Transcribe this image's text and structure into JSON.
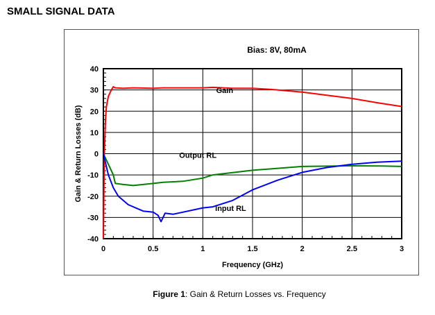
{
  "section_title": "SMALL SIGNAL DATA",
  "caption": {
    "label": "Figure 1",
    "text": ": Gain & Return Losses vs. Frequency"
  },
  "chart_data": {
    "type": "line",
    "title": "Bias: 8V, 80mA",
    "xlabel": "Frequency (GHz)",
    "ylabel": "Gain & Return Losses (dB)",
    "xlim": [
      0,
      3
    ],
    "ylim": [
      -40,
      40
    ],
    "xticks": [
      0,
      0.5,
      1,
      1.5,
      2,
      2.5,
      3
    ],
    "xtick_labels": [
      "0",
      "0.5",
      "1",
      "1.5",
      "2",
      "2.5",
      "3"
    ],
    "yticks": [
      -40,
      -30,
      -20,
      -10,
      0,
      10,
      20,
      30,
      40
    ],
    "ytick_labels": [
      "-40",
      "-30",
      "-20",
      "-10",
      "0",
      "10",
      "20",
      "30",
      "40"
    ],
    "grid": true,
    "series": [
      {
        "name": "Gain",
        "color": "#ff0000",
        "x": [
          0,
          0.005,
          0.01,
          0.02,
          0.03,
          0.05,
          0.08,
          0.1,
          0.12,
          0.2,
          0.3,
          0.5,
          0.6,
          1.0,
          1.1,
          1.3,
          1.5,
          1.7,
          2.0,
          2.3,
          2.5,
          2.75,
          3.0
        ],
        "y": [
          -40,
          -20,
          0,
          15,
          22,
          27,
          30,
          31.5,
          31,
          30.8,
          31,
          30.8,
          31,
          31,
          31.2,
          30.8,
          30.8,
          30.2,
          29,
          27.2,
          26,
          24,
          22.2
        ]
      },
      {
        "name": "Output RL",
        "color": "#008000",
        "x": [
          0,
          0.05,
          0.1,
          0.12,
          0.2,
          0.3,
          0.5,
          0.6,
          0.8,
          1.0,
          1.1,
          1.5,
          2.0,
          2.5,
          2.8,
          3.0
        ],
        "y": [
          0,
          -5,
          -10,
          -14,
          -14.5,
          -15,
          -14,
          -13.5,
          -13,
          -11.5,
          -10,
          -7.8,
          -6,
          -5.7,
          -5.8,
          -6
        ]
      },
      {
        "name": "Input RL",
        "color": "#0000ff",
        "x": [
          0,
          0.05,
          0.1,
          0.15,
          0.25,
          0.4,
          0.5,
          0.55,
          0.58,
          0.62,
          0.7,
          0.75,
          1.0,
          1.1,
          1.3,
          1.5,
          1.75,
          2.0,
          2.25,
          2.5,
          2.75,
          3.0
        ],
        "y": [
          0,
          -10,
          -16,
          -20,
          -24,
          -27,
          -27.5,
          -29,
          -32,
          -28,
          -28.5,
          -28,
          -25.5,
          -25,
          -22,
          -17,
          -12.5,
          -8.8,
          -6.5,
          -5,
          -4,
          -3.5
        ]
      }
    ],
    "annotations": [
      {
        "text": "Gain",
        "x": 1.22,
        "y": 28.5
      },
      {
        "text": "Output RL",
        "x": 0.95,
        "y": -2
      },
      {
        "text": "Input RL",
        "x": 1.28,
        "y": -27
      }
    ]
  }
}
